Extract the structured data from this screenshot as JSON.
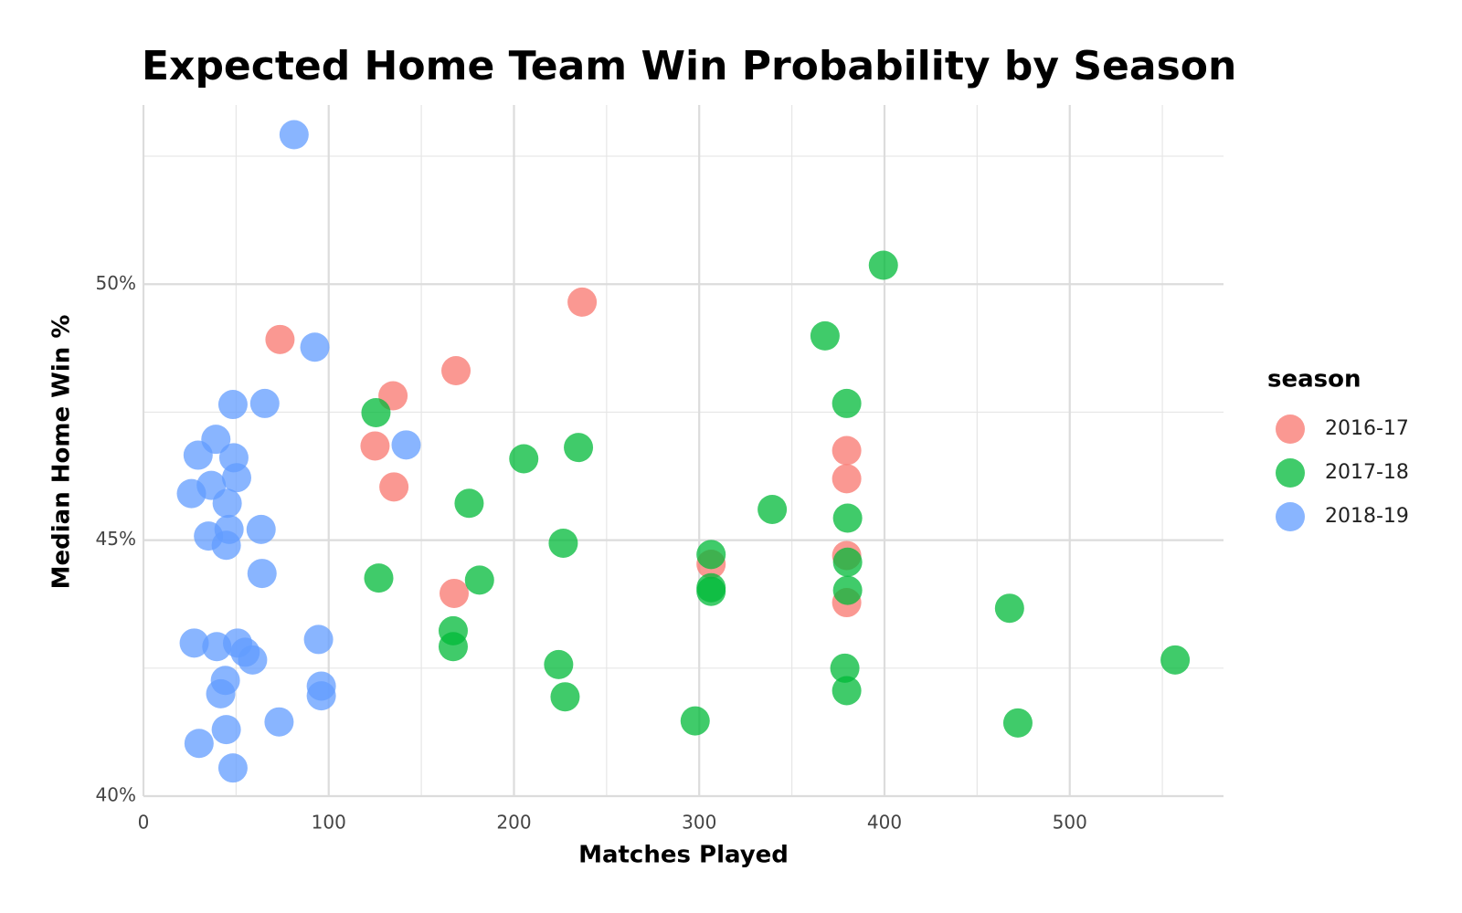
{
  "chart_data": {
    "type": "scatter",
    "title": "Expected Home Team Win Probability by Season",
    "x_label": "Matches Played",
    "y_label": "Median Home Win %",
    "legend_title": "season",
    "legend_position": "right",
    "grid": true,
    "xlim": [
      0,
      583
    ],
    "ylim": [
      40,
      53.5
    ],
    "xticks": [
      0,
      100,
      200,
      300,
      400,
      500
    ],
    "minor_xticks": [
      50,
      150,
      250,
      350,
      450,
      550
    ],
    "yticks": [
      {
        "value": 40,
        "label": "40%"
      },
      {
        "value": 45,
        "label": "45%"
      },
      {
        "value": 50,
        "label": "50%"
      }
    ],
    "minor_yticks": [
      42.5,
      47.5,
      52.5
    ],
    "series": [
      {
        "name": "2016-17",
        "color": "#F8766D",
        "x": [
          73.7,
          236.8,
          168.7,
          134.7,
          125,
          135.2,
          167.7,
          379.6,
          379.6,
          379.6,
          306.4,
          379.6
        ],
        "values": [
          48.92,
          49.65,
          48.31,
          47.82,
          46.84,
          46.04,
          43.96,
          46.75,
          46.2,
          44.7,
          44.53,
          43.78
        ]
      },
      {
        "name": "2017-18",
        "color": "#00BA38",
        "x": [
          399.4,
          367.9,
          379.6,
          125.5,
          234.8,
          205.3,
          175.8,
          339.4,
          380.1,
          226.6,
          306.4,
          380.1,
          127,
          181.4,
          306.4,
          306.4,
          380.1,
          467.5,
          167.2,
          167.2,
          224.1,
          378.6,
          556.9,
          227.6,
          379.6,
          297.8,
          472
        ],
        "values": [
          50.37,
          48.99,
          47.67,
          47.49,
          46.81,
          46.59,
          45.72,
          45.6,
          45.43,
          44.94,
          44.72,
          44.57,
          44.26,
          44.22,
          44.07,
          44.0,
          44.02,
          43.67,
          43.23,
          42.92,
          42.57,
          42.5,
          42.66,
          41.94,
          42.06,
          41.47,
          41.43
        ]
      },
      {
        "name": "2018-19",
        "color": "#619CFF",
        "x": [
          81.3,
          92.5,
          48.3,
          65.5,
          39.1,
          29.5,
          48.8,
          36.6,
          50.3,
          25.9,
          45.2,
          141.8,
          46.2,
          63.5,
          35.1,
          44.7,
          64,
          27.4,
          39.6,
          50.8,
          54.9,
          58.9,
          94.5,
          44.2,
          96,
          96,
          41.7,
          73.2,
          44.7,
          30,
          48.3
        ],
        "values": [
          52.92,
          48.77,
          47.65,
          47.67,
          46.97,
          46.66,
          46.61,
          46.07,
          46.22,
          45.91,
          45.72,
          46.86,
          45.21,
          45.21,
          45.08,
          44.9,
          44.35,
          42.99,
          42.92,
          42.99,
          42.81,
          42.66,
          43.06,
          42.26,
          42.15,
          41.96,
          42.0,
          41.45,
          41.3,
          41.03,
          40.55
        ]
      }
    ]
  }
}
